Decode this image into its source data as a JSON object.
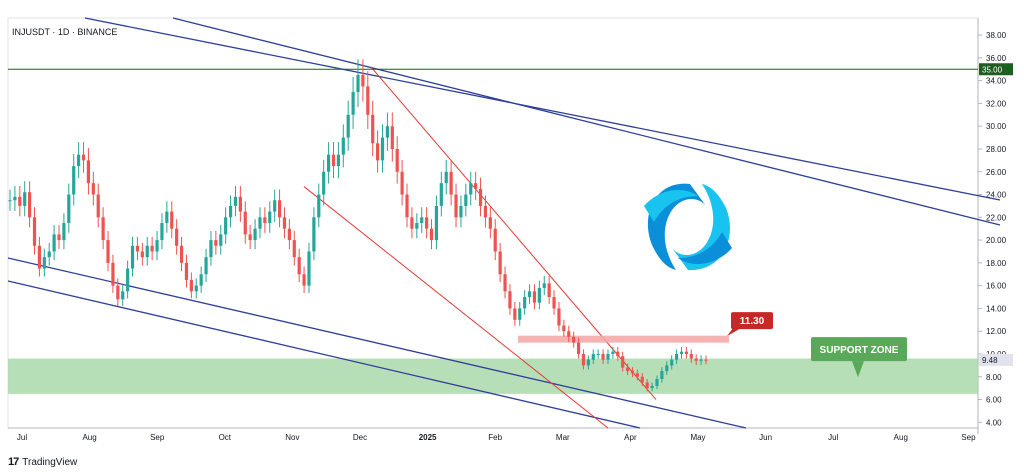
{
  "header": {
    "symbol": "INJUSDT · 1D · BINANCE"
  },
  "footer": {
    "brand": "TradingView",
    "logo_icon": "tradingview-logo-icon"
  },
  "logo": {
    "name": "injective-logo-icon",
    "colors": [
      "#0a8fd8",
      "#19c3f0"
    ]
  },
  "chart_data": {
    "type": "candlestick",
    "title": "INJUSDT · 1D · BINANCE",
    "y_ticks": [
      "38.00",
      "36.00",
      "34.00",
      "32.00",
      "30.00",
      "28.00",
      "26.00",
      "24.00",
      "22.00",
      "20.00",
      "18.00",
      "16.00",
      "14.00",
      "12.00",
      "10.00",
      "8.00",
      "6.00",
      "4.00"
    ],
    "x_ticks": [
      "Jul",
      "Aug",
      "Sep",
      "Oct",
      "Nov",
      "Dec",
      "2025",
      "Feb",
      "Mar",
      "Apr",
      "May",
      "Jun",
      "Jul",
      "Aug",
      "Sep"
    ],
    "ylim": [
      3.5,
      39.5
    ],
    "price_markers": [
      {
        "label": "35.00",
        "value": 35.0,
        "color": "#1e5e20"
      },
      {
        "label": "9.48",
        "value": 9.48,
        "color": "#e0e3eb"
      }
    ],
    "colors": {
      "up": "#26a69a",
      "down": "#ef5350",
      "channel": "#2f3f9a",
      "wedge": "#e53935"
    },
    "annotations": {
      "resistance": {
        "label": "11.30",
        "value": 11.3,
        "color": "#c62828"
      },
      "support": {
        "label": "SUPPORT ZONE",
        "from": 6.5,
        "to": 9.6,
        "color": "#5aa85a"
      }
    },
    "closes": [
      23.5,
      23.8,
      23,
      24.2,
      22,
      19.5,
      17.5,
      18.5,
      19,
      20.5,
      20,
      21.5,
      24,
      26.5,
      27.5,
      27,
      25,
      24,
      22,
      20,
      18,
      16,
      14.8,
      15.5,
      17.5,
      19.5,
      19,
      18.5,
      19.5,
      19,
      20,
      21.5,
      22.5,
      21,
      19.5,
      18,
      16.5,
      15.5,
      16,
      17,
      18.5,
      20,
      19.5,
      20.5,
      22,
      23,
      23.8,
      22.5,
      20.5,
      20,
      21,
      22,
      21.5,
      22.5,
      23.5,
      22,
      21,
      20,
      18.5,
      17,
      16,
      19,
      22,
      24,
      26,
      27.5,
      26.5,
      27.5,
      29,
      31,
      33,
      34.5,
      33.5,
      31,
      28.5,
      27,
      29,
      30,
      28,
      26,
      24,
      22,
      21,
      21.5,
      22,
      21,
      20,
      23,
      25,
      26,
      24,
      22,
      23,
      24,
      25,
      24.5,
      23,
      22,
      21,
      19,
      17,
      15.5,
      14,
      13,
      14,
      15,
      15.5,
      14.5,
      15.8,
      16.2,
      15,
      14,
      12.5,
      12,
      11.5,
      11,
      10,
      9,
      9.5,
      10,
      10,
      9.5,
      10,
      10.2,
      9.8,
      8.8,
      8.5,
      8.3,
      8,
      7.5,
      7,
      7.2,
      7.8,
      8.5,
      9,
      9.5,
      10,
      10.2,
      10,
      9.6,
      9.4,
      9.5,
      9.48
    ]
  }
}
